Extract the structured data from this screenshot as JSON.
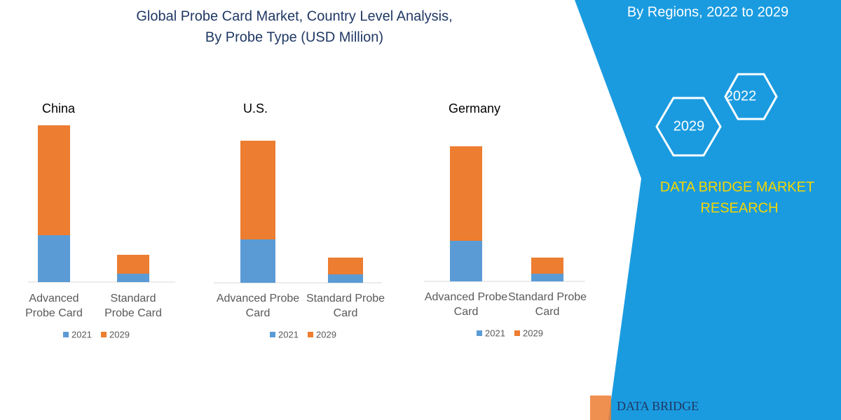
{
  "header": {
    "title": "Global Probe Card Market, Country Level Analysis,",
    "subtitle": "By Probe Type (USD Million)"
  },
  "panel": {
    "heading": "By Regions, 2022 to 2029",
    "hex_top": "2022",
    "hex_bottom": "2029",
    "brand": "DATA BRIDGE MARKET",
    "brand_line2": "RESEARCH",
    "logo": "DATA BRIDGE"
  },
  "chart_data": [
    {
      "type": "bar",
      "stacked": true,
      "title": "China",
      "categories": [
        "Advanced Probe Card",
        "Standard Probe Card"
      ],
      "series": [
        {
          "name": "2021",
          "color": "#5b9bd5",
          "values": [
            67,
            12
          ]
        },
        {
          "name": "2029",
          "color": "#ed7d31",
          "values": [
            157,
            27
          ]
        }
      ]
    },
    {
      "type": "bar",
      "stacked": true,
      "title": "U.S.",
      "categories": [
        "Advanced Probe Card",
        "Standard Probe Card"
      ],
      "series": [
        {
          "name": "2021",
          "color": "#5b9bd5",
          "values": [
            62,
            12
          ]
        },
        {
          "name": "2029",
          "color": "#ed7d31",
          "values": [
            141,
            24
          ]
        }
      ]
    },
    {
      "type": "bar",
      "stacked": true,
      "title": "Germany",
      "categories": [
        "Advanced Probe Card",
        "Standard Probe Card"
      ],
      "series": [
        {
          "name": "2021",
          "color": "#5b9bd5",
          "values": [
            58,
            11
          ]
        },
        {
          "name": "2029",
          "color": "#ed7d31",
          "values": [
            135,
            23
          ]
        }
      ]
    }
  ]
}
